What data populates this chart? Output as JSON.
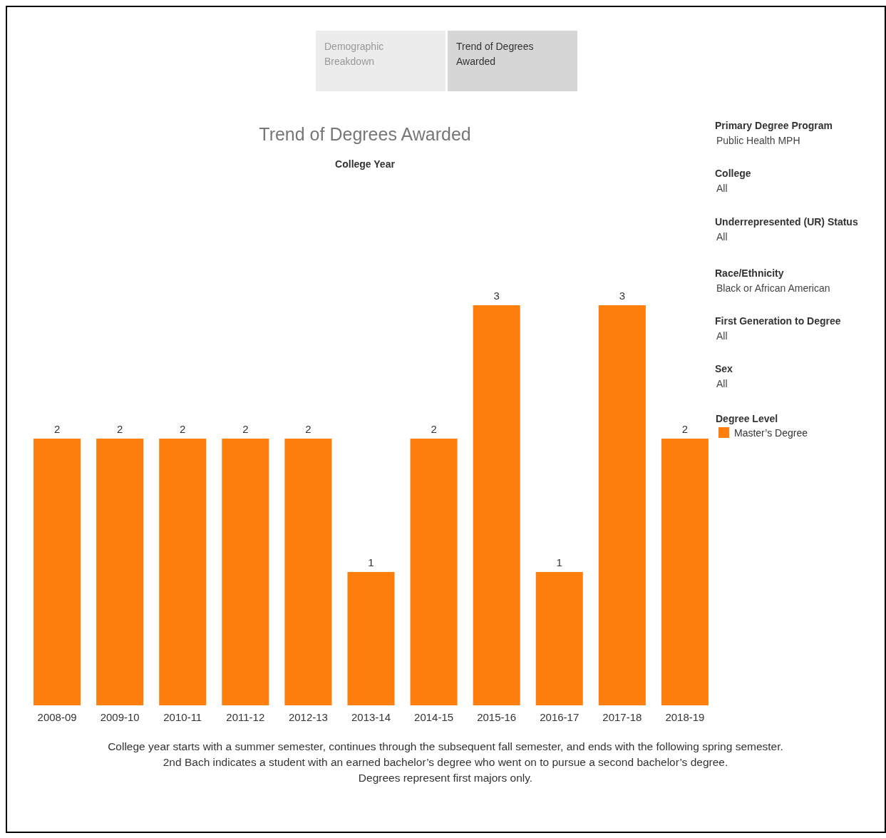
{
  "chart_data": {
    "type": "bar",
    "title": "Trend of Degrees Awarded",
    "subtitle": "College Year",
    "categories": [
      "2008-09",
      "2009-10",
      "2010-11",
      "2011-12",
      "2012-13",
      "2013-14",
      "2014-15",
      "2015-16",
      "2016-17",
      "2017-18",
      "2018-19"
    ],
    "series": [
      {
        "name": "Master’s Degree",
        "color": "#ff7f0e",
        "values": [
          2,
          2,
          2,
          2,
          2,
          1,
          2,
          3,
          1,
          3,
          2
        ]
      }
    ],
    "data_labels": true,
    "legend": "right",
    "legend_title": "Degree Level",
    "annotations": [
      "Demographic Breakdown",
      "Trend of Degrees Awarded",
      "Primary Degree Program",
      "Public Health MPH",
      "College",
      "All",
      "Underrepresented (UR) Status",
      "All",
      "Race/Ethnicity",
      "Black or African American",
      "First Generation to Degree",
      "All",
      "Sex",
      "All",
      "College year starts with a summer semester, continues through the subsequent fall semester, and ends with the following spring semester.",
      "2nd Bach indicates a student with an earned bachelor’s degree who went on to pursue a second bachelor’s degree.",
      "Degrees represent first majors only."
    ]
  }
}
